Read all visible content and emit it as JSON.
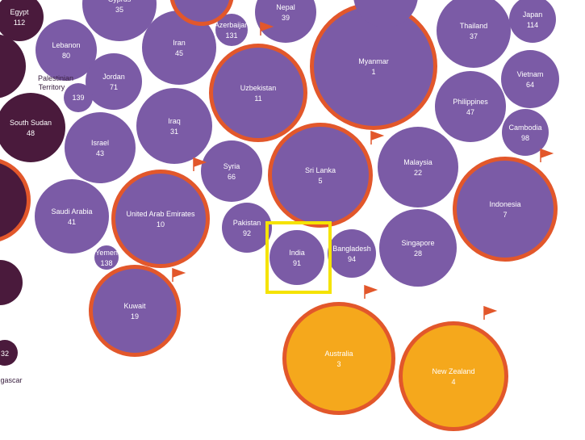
{
  "colors": {
    "purple": "#7b5ba6",
    "dark": "#4a1a3c",
    "orange_ring": "#e2572b",
    "gold": "#f5a81c",
    "highlight": "#f5e300",
    "flag": "#e2572b"
  },
  "bubbles": [
    {
      "name": "Egypt",
      "rank": "112",
      "style": "dark"
    },
    {
      "name": "",
      "rank": "",
      "style": "dark"
    },
    {
      "name": "South Sudan",
      "rank": "48",
      "style": "dark"
    },
    {
      "name": "",
      "rank": "",
      "style": "dark-ring"
    },
    {
      "name": "",
      "rank": "",
      "style": "dark"
    },
    {
      "name": "",
      "rank": "",
      "style": "dark"
    },
    {
      "name": "Cyprus",
      "rank": "35",
      "style": "purple"
    },
    {
      "name": "Lebanon",
      "rank": "80",
      "style": "purple"
    },
    {
      "name": "Iran",
      "rank": "45",
      "style": "purple"
    },
    {
      "name": "Jordan",
      "rank": "71",
      "style": "purple"
    },
    {
      "name": "",
      "rank": "139",
      "style": "purple"
    },
    {
      "name": "Israel",
      "rank": "43",
      "style": "purple"
    },
    {
      "name": "Iraq",
      "rank": "31",
      "style": "purple"
    },
    {
      "name": "Saudi Arabia",
      "rank": "41",
      "style": "purple"
    },
    {
      "name": "United Arab Emirates",
      "rank": "10",
      "style": "ring"
    },
    {
      "name": "Yemen",
      "rank": "138",
      "style": "purple"
    },
    {
      "name": "Kuwait",
      "rank": "19",
      "style": "ring"
    },
    {
      "name": "Azerbaijan",
      "rank": "131",
      "style": "purple"
    },
    {
      "name": "Nepal",
      "rank": "39",
      "style": "purple"
    },
    {
      "name": "Uzbekistan",
      "rank": "11",
      "style": "ring"
    },
    {
      "name": "Syria",
      "rank": "66",
      "style": "purple"
    },
    {
      "name": "Pakistan",
      "rank": "92",
      "style": "purple"
    },
    {
      "name": "Myanmar",
      "rank": "1",
      "style": "ring"
    },
    {
      "name": "Sri Lanka",
      "rank": "5",
      "style": "ring"
    },
    {
      "name": "India",
      "rank": "91",
      "style": "purple"
    },
    {
      "name": "Bangladesh",
      "rank": "94",
      "style": "purple"
    },
    {
      "name": "Thailand",
      "rank": "37",
      "style": "purple"
    },
    {
      "name": "Japan",
      "rank": "114",
      "style": "purple"
    },
    {
      "name": "Vietnam",
      "rank": "64",
      "style": "purple"
    },
    {
      "name": "Philippines",
      "rank": "47",
      "style": "purple"
    },
    {
      "name": "Cambodia",
      "rank": "98",
      "style": "purple"
    },
    {
      "name": "Malaysia",
      "rank": "22",
      "style": "purple"
    },
    {
      "name": "Indonesia",
      "rank": "7",
      "style": "ring"
    },
    {
      "name": "Singapore",
      "rank": "28",
      "style": "purple"
    },
    {
      "name": "Australia",
      "rank": "3",
      "style": "gold"
    },
    {
      "name": "New Zealand",
      "rank": "4",
      "style": "gold"
    },
    {
      "name": "",
      "rank": "",
      "style": "purple"
    },
    {
      "name": "",
      "rank": "",
      "style": "ring"
    }
  ],
  "outside_labels": {
    "palestinian": "Palestinian",
    "territory": "Territory",
    "partial_rank": "32",
    "partial_name": "gascar"
  },
  "highlight_target": "India"
}
